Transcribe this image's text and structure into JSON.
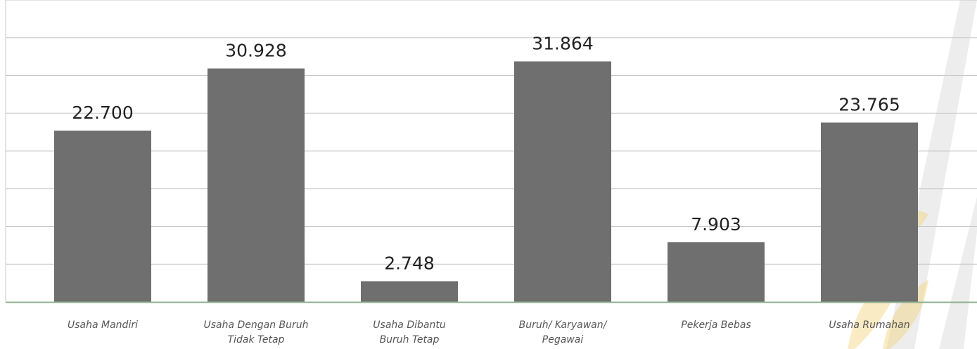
{
  "chart_data": {
    "type": "bar",
    "title": "",
    "xlabel": "",
    "ylabel": "",
    "ylim": [
      0,
      40000
    ],
    "grid": true,
    "categories": [
      [
        "Usaha Mandiri"
      ],
      [
        "Usaha Dengan Buruh",
        "Tidak Tetap"
      ],
      [
        "Usaha Dibantu",
        "Buruh Tetap"
      ],
      [
        "Buruh/ Karyawan/",
        "Pegawai"
      ],
      [
        "Pekerja Bebas"
      ],
      [
        "Usaha Rumahan"
      ]
    ],
    "values": [
      22700,
      30928,
      2748,
      31864,
      7903,
      23765
    ],
    "value_labels": [
      "22.700",
      "30.928",
      "2.748",
      "31.864",
      "7.903",
      "23.765"
    ],
    "colors": {
      "bar": "#6f6f6f",
      "grid": "#c8c8c8",
      "axis": "#8fb08f",
      "watermark_gold": "#f2d37a"
    }
  }
}
